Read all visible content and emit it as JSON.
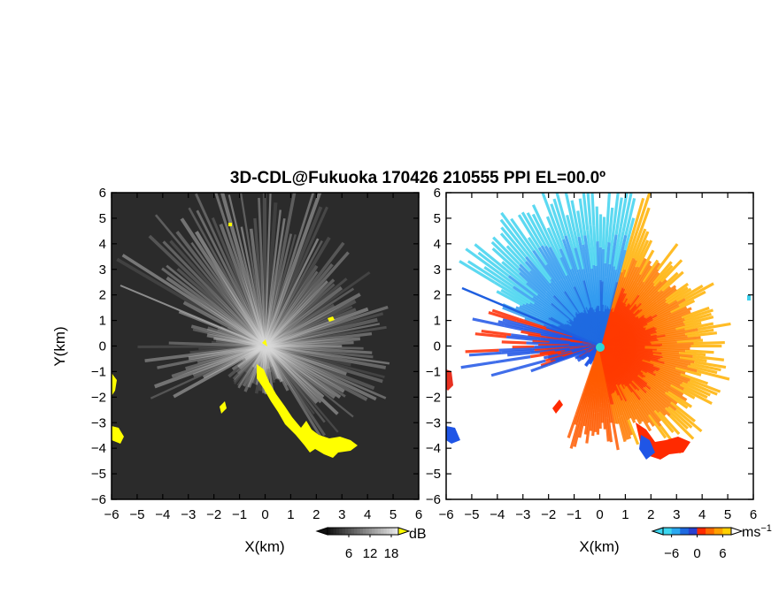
{
  "title": "3D-CDL@Fukuoka 170426 210555 PPI EL=00.0º",
  "chart_data": [
    {
      "type": "heatmap",
      "field": "intensity",
      "xlabel": "X(km)",
      "ylabel": "Y(km)",
      "xlim": [
        -6,
        6
      ],
      "ylim": [
        -6,
        6
      ],
      "xticks": [
        "−6",
        "−5",
        "−4",
        "−3",
        "−2",
        "−1",
        "0",
        "1",
        "2",
        "3",
        "4",
        "5",
        "6"
      ],
      "yticks": [
        "6",
        "5",
        "4",
        "3",
        "2",
        "1",
        "0",
        "−1",
        "−2",
        "−3",
        "−4",
        "−5",
        "−6"
      ],
      "colorbar": {
        "ticks": [
          "6",
          "12",
          "18"
        ],
        "unit": "dB",
        "range": [
          0,
          20
        ]
      },
      "colors": {
        "background": "#2a2a2a",
        "beams": "#d8d8d8",
        "highlight": "#ffff00"
      }
    },
    {
      "type": "heatmap",
      "field": "doppler velocity",
      "xlabel": "X(km)",
      "ylabel": "",
      "xlim": [
        -6,
        6
      ],
      "ylim": [
        -6,
        6
      ],
      "xticks": [
        "−6",
        "−5",
        "−4",
        "−3",
        "−2",
        "−1",
        "0",
        "1",
        "2",
        "3",
        "4",
        "5",
        "6"
      ],
      "yticks": [
        "6",
        "5",
        "4",
        "3",
        "2",
        "1",
        "0",
        "−1",
        "−2",
        "−3",
        "−4",
        "−5",
        "−6"
      ],
      "colorbar": {
        "ticks": [
          "−6",
          "0",
          "6"
        ],
        "unit": "ms",
        "unit_exp": "−1",
        "range": [
          -8,
          8
        ]
      },
      "colors": {
        "negative": "#1e6ae0",
        "zero": "#ff3a00",
        "positive": "#ffd000",
        "far_negative": "#3cd6f0"
      }
    }
  ]
}
